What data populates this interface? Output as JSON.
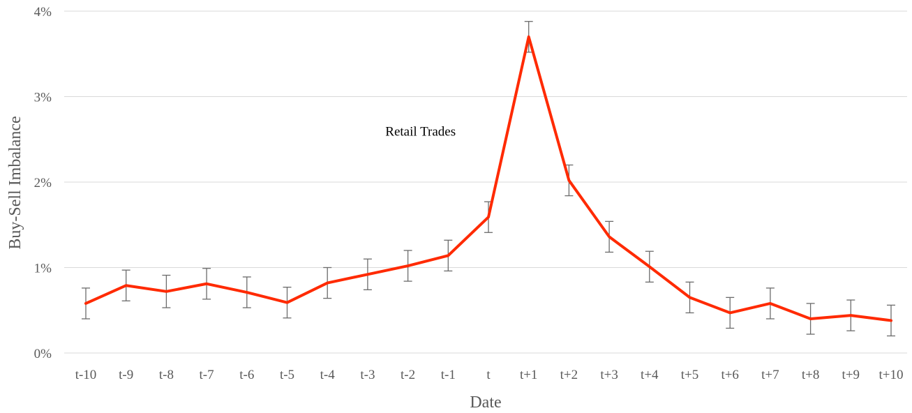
{
  "chart_data": {
    "type": "line",
    "title": "",
    "xlabel": "Date",
    "ylabel": "Buy-Sell Imbalance",
    "ylim": [
      0,
      4
    ],
    "y_tick_labels": [
      "0%",
      "1%",
      "2%",
      "3%",
      "4%"
    ],
    "y_tick_values": [
      0,
      1,
      2,
      3,
      4
    ],
    "categories": [
      "t-10",
      "t-9",
      "t-8",
      "t-7",
      "t-6",
      "t-5",
      "t-4",
      "t-3",
      "t-2",
      "t-1",
      "t",
      "t+1",
      "t+2",
      "t+3",
      "t+4",
      "t+5",
      "t+6",
      "t+7",
      "t+8",
      "t+9",
      "t+10"
    ],
    "grid": "horizontal",
    "legend": "none",
    "series": [
      {
        "values": [
          0.58,
          0.79,
          0.72,
          0.81,
          0.71,
          0.59,
          0.82,
          0.92,
          1.02,
          1.14,
          1.59,
          3.7,
          2.02,
          1.36,
          1.01,
          0.65,
          0.47,
          0.58,
          0.4,
          0.44,
          0.38
        ],
        "error": [
          0.18,
          0.18,
          0.19,
          0.18,
          0.18,
          0.18,
          0.18,
          0.18,
          0.18,
          0.18,
          0.18,
          0.18,
          0.18,
          0.18,
          0.18,
          0.18,
          0.18,
          0.18,
          0.18,
          0.18,
          0.18
        ],
        "color": "#ff2a00"
      }
    ],
    "annotations": [
      {
        "text": "Retail Trades",
        "x": "t-1",
        "y": 2.6
      }
    ],
    "colors": {
      "line": "#ff2a00",
      "error_bar": "#6b6b6b",
      "grid": "#d9d9d9",
      "axis_text": "#595959"
    }
  }
}
